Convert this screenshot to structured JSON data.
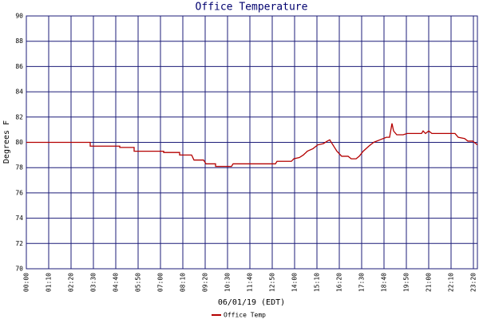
{
  "chart_data": {
    "type": "line",
    "title": "Office Temperature",
    "x_label": "06/01/19 (EDT)",
    "y_label": "Degrees F",
    "x": [
      0,
      200,
      200,
      292.5,
      292.5,
      337.5,
      337.5,
      430,
      430,
      480,
      480,
      517.5,
      525,
      555,
      562.5,
      592.5,
      592.5,
      642.5,
      647.5,
      780,
      785,
      830,
      837.5,
      855,
      867.5,
      880,
      897.5,
      912.5,
      930,
      942.5,
      950,
      960,
      972.5,
      987.5,
      1007.5,
      1017.5,
      1032.5,
      1042.5,
      1055,
      1072.5,
      1087.5,
      1107.5,
      1127.5,
      1137.5,
      1145,
      1150,
      1160,
      1180,
      1192.5,
      1237.5,
      1242.5,
      1250,
      1260,
      1270,
      1342.5,
      1352.5,
      1372.5,
      1382.5,
      1397.5,
      1412.5
    ],
    "series": [
      {
        "name": "Office Temp",
        "color": "#b40000",
        "values": [
          80.0,
          80.0,
          79.7,
          79.7,
          79.6,
          79.6,
          79.3,
          79.3,
          79.2,
          79.2,
          79.0,
          79.0,
          78.6,
          78.6,
          78.3,
          78.3,
          78.1,
          78.1,
          78.3,
          78.3,
          78.5,
          78.5,
          78.7,
          78.8,
          79.0,
          79.3,
          79.5,
          79.8,
          79.9,
          80.1,
          80.2,
          79.8,
          79.3,
          78.9,
          78.9,
          78.7,
          78.7,
          78.9,
          79.3,
          79.7,
          80.0,
          80.2,
          80.4,
          80.4,
          81.5,
          80.9,
          80.6,
          80.6,
          80.7,
          80.7,
          80.9,
          80.7,
          80.9,
          80.7,
          80.7,
          80.4,
          80.3,
          80.1,
          80.1,
          79.8
        ]
      }
    ],
    "xlim": [
      0,
      1412.5
    ],
    "xticks": [
      {
        "value": 0,
        "label": "00:00"
      },
      {
        "value": 70,
        "label": "01:10"
      },
      {
        "value": 140,
        "label": "02:20"
      },
      {
        "value": 210,
        "label": "03:30"
      },
      {
        "value": 280,
        "label": "04:40"
      },
      {
        "value": 350,
        "label": "05:50"
      },
      {
        "value": 420,
        "label": "07:00"
      },
      {
        "value": 490,
        "label": "08:10"
      },
      {
        "value": 560,
        "label": "09:20"
      },
      {
        "value": 630,
        "label": "10:30"
      },
      {
        "value": 700,
        "label": "11:40"
      },
      {
        "value": 770,
        "label": "12:50"
      },
      {
        "value": 840,
        "label": "14:00"
      },
      {
        "value": 910,
        "label": "15:10"
      },
      {
        "value": 980,
        "label": "16:20"
      },
      {
        "value": 1050,
        "label": "17:30"
      },
      {
        "value": 1120,
        "label": "18:40"
      },
      {
        "value": 1190,
        "label": "19:50"
      },
      {
        "value": 1260,
        "label": "21:00"
      },
      {
        "value": 1330,
        "label": "22:10"
      },
      {
        "value": 1400,
        "label": "23:20"
      }
    ],
    "ylim": [
      70,
      90
    ],
    "yticks": [
      70,
      72,
      74,
      76,
      78,
      80,
      82,
      84,
      86,
      88,
      90
    ],
    "grid": true,
    "grid_color": "#1c1c78",
    "legend": "bottom"
  }
}
